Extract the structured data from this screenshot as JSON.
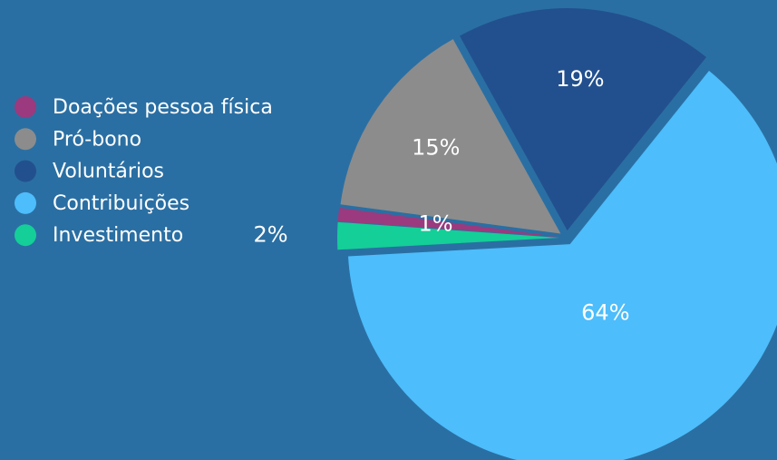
{
  "chart_data": {
    "type": "pie",
    "categories": [
      "Doações pessoa física",
      "Pró-bono",
      "Voluntários",
      "Contribuições",
      "Investimento"
    ],
    "values": [
      1,
      15,
      19,
      64,
      2
    ],
    "value_labels": [
      "1%",
      "15%",
      "19%",
      "64%",
      "2%"
    ],
    "colors": [
      "#9b3a7e",
      "#8c8c8c",
      "#22508e",
      "#4dbdfb",
      "#14cf97"
    ],
    "legend": "left"
  }
}
